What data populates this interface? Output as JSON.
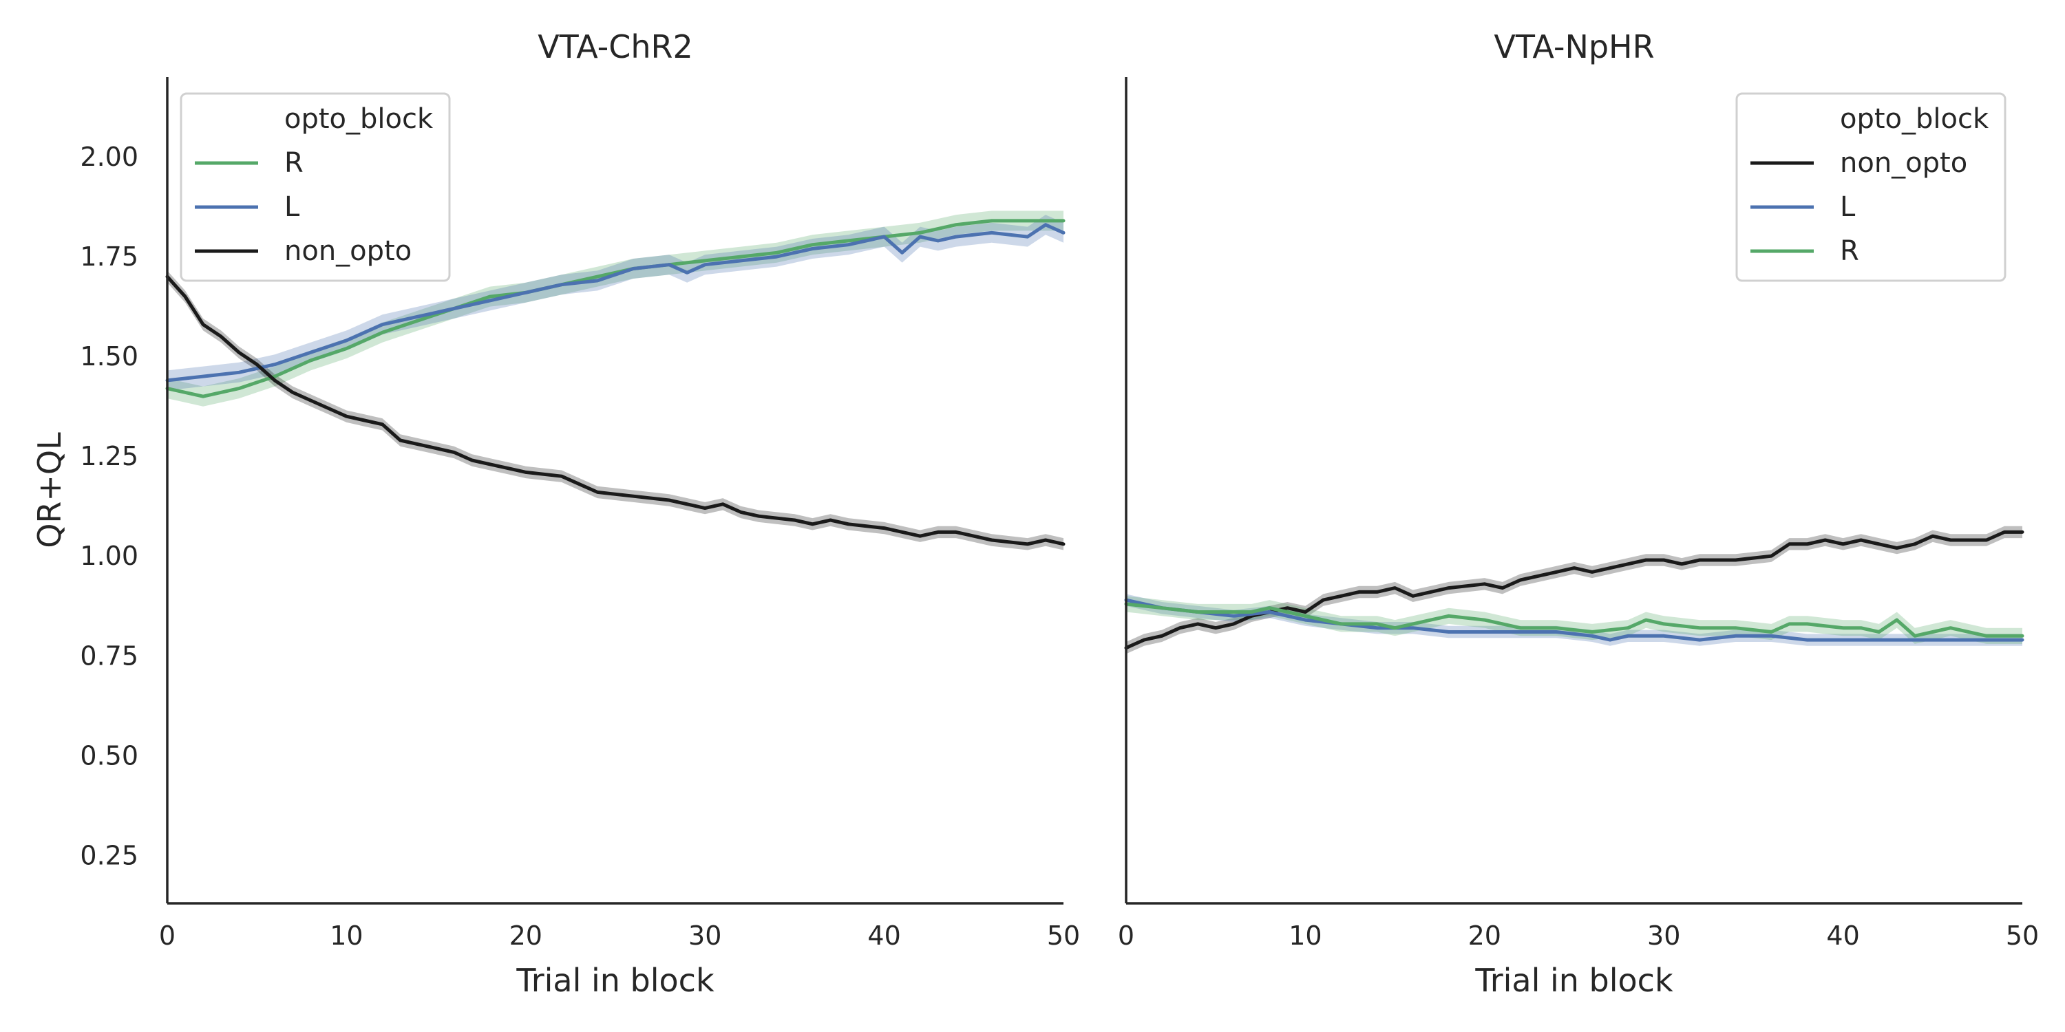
{
  "chart_data": [
    {
      "type": "line",
      "title": "VTA-ChR2",
      "xlabel": "Trial in block",
      "ylabel": "QR+QL",
      "xlim": [
        0,
        50
      ],
      "ylim": [
        0.13,
        2.2
      ],
      "xticks": [
        0,
        10,
        20,
        30,
        40,
        50
      ],
      "yticks": [
        0.25,
        0.5,
        0.75,
        1.0,
        1.25,
        1.5,
        1.75,
        2.0
      ],
      "ytick_labels": [
        "0.25",
        "0.50",
        "0.75",
        "1.00",
        "1.25",
        "1.50",
        "1.75",
        "2.00"
      ],
      "grid": false,
      "legend": {
        "title": "opto_block",
        "position": "top-left"
      },
      "series": [
        {
          "name": "R",
          "color": "#55a868",
          "band": 0.025,
          "points": [
            [
              0,
              1.42
            ],
            [
              2,
              1.4
            ],
            [
              4,
              1.42
            ],
            [
              6,
              1.45
            ],
            [
              8,
              1.49
            ],
            [
              10,
              1.52
            ],
            [
              12,
              1.56
            ],
            [
              14,
              1.59
            ],
            [
              16,
              1.62
            ],
            [
              18,
              1.65
            ],
            [
              20,
              1.66
            ],
            [
              22,
              1.68
            ],
            [
              24,
              1.7
            ],
            [
              26,
              1.72
            ],
            [
              28,
              1.73
            ],
            [
              30,
              1.74
            ],
            [
              32,
              1.75
            ],
            [
              34,
              1.76
            ],
            [
              36,
              1.78
            ],
            [
              38,
              1.79
            ],
            [
              40,
              1.8
            ],
            [
              42,
              1.81
            ],
            [
              44,
              1.83
            ],
            [
              46,
              1.84
            ],
            [
              48,
              1.84
            ],
            [
              50,
              1.84
            ]
          ]
        },
        {
          "name": "L",
          "color": "#4c72b0",
          "band": 0.025,
          "points": [
            [
              0,
              1.44
            ],
            [
              2,
              1.45
            ],
            [
              4,
              1.46
            ],
            [
              6,
              1.48
            ],
            [
              8,
              1.51
            ],
            [
              10,
              1.54
            ],
            [
              12,
              1.58
            ],
            [
              14,
              1.6
            ],
            [
              16,
              1.62
            ],
            [
              18,
              1.64
            ],
            [
              20,
              1.66
            ],
            [
              22,
              1.68
            ],
            [
              24,
              1.69
            ],
            [
              26,
              1.72
            ],
            [
              28,
              1.73
            ],
            [
              29,
              1.71
            ],
            [
              30,
              1.73
            ],
            [
              32,
              1.74
            ],
            [
              34,
              1.75
            ],
            [
              36,
              1.77
            ],
            [
              38,
              1.78
            ],
            [
              40,
              1.8
            ],
            [
              41,
              1.76
            ],
            [
              42,
              1.8
            ],
            [
              43,
              1.79
            ],
            [
              44,
              1.8
            ],
            [
              46,
              1.81
            ],
            [
              48,
              1.8
            ],
            [
              49,
              1.83
            ],
            [
              50,
              1.81
            ]
          ]
        },
        {
          "name": "non_opto",
          "color": "#1a1a1a",
          "band": 0.015,
          "points": [
            [
              0,
              1.7
            ],
            [
              1,
              1.65
            ],
            [
              2,
              1.58
            ],
            [
              3,
              1.55
            ],
            [
              4,
              1.51
            ],
            [
              5,
              1.48
            ],
            [
              6,
              1.44
            ],
            [
              7,
              1.41
            ],
            [
              8,
              1.39
            ],
            [
              9,
              1.37
            ],
            [
              10,
              1.35
            ],
            [
              11,
              1.34
            ],
            [
              12,
              1.33
            ],
            [
              13,
              1.29
            ],
            [
              14,
              1.28
            ],
            [
              15,
              1.27
            ],
            [
              16,
              1.26
            ],
            [
              17,
              1.24
            ],
            [
              18,
              1.23
            ],
            [
              19,
              1.22
            ],
            [
              20,
              1.21
            ],
            [
              22,
              1.2
            ],
            [
              23,
              1.18
            ],
            [
              24,
              1.16
            ],
            [
              26,
              1.15
            ],
            [
              28,
              1.14
            ],
            [
              30,
              1.12
            ],
            [
              31,
              1.13
            ],
            [
              32,
              1.11
            ],
            [
              33,
              1.1
            ],
            [
              35,
              1.09
            ],
            [
              36,
              1.08
            ],
            [
              37,
              1.09
            ],
            [
              38,
              1.08
            ],
            [
              40,
              1.07
            ],
            [
              42,
              1.05
            ],
            [
              43,
              1.06
            ],
            [
              44,
              1.06
            ],
            [
              45,
              1.05
            ],
            [
              46,
              1.04
            ],
            [
              48,
              1.03
            ],
            [
              49,
              1.04
            ],
            [
              50,
              1.03
            ]
          ]
        }
      ]
    },
    {
      "type": "line",
      "title": "VTA-NpHR",
      "xlabel": "Trial in block",
      "ylabel": "",
      "xlim": [
        0,
        50
      ],
      "ylim": [
        0.13,
        2.2
      ],
      "xticks": [
        0,
        10,
        20,
        30,
        40,
        50
      ],
      "grid": false,
      "legend": {
        "title": "opto_block",
        "position": "top-right"
      },
      "series": [
        {
          "name": "non_opto",
          "color": "#1a1a1a",
          "band": 0.015,
          "points": [
            [
              0,
              0.77
            ],
            [
              1,
              0.79
            ],
            [
              2,
              0.8
            ],
            [
              3,
              0.82
            ],
            [
              4,
              0.83
            ],
            [
              5,
              0.82
            ],
            [
              6,
              0.83
            ],
            [
              7,
              0.85
            ],
            [
              8,
              0.86
            ],
            [
              9,
              0.87
            ],
            [
              10,
              0.86
            ],
            [
              11,
              0.89
            ],
            [
              12,
              0.9
            ],
            [
              13,
              0.91
            ],
            [
              14,
              0.91
            ],
            [
              15,
              0.92
            ],
            [
              16,
              0.9
            ],
            [
              17,
              0.91
            ],
            [
              18,
              0.92
            ],
            [
              20,
              0.93
            ],
            [
              21,
              0.92
            ],
            [
              22,
              0.94
            ],
            [
              24,
              0.96
            ],
            [
              25,
              0.97
            ],
            [
              26,
              0.96
            ],
            [
              28,
              0.98
            ],
            [
              29,
              0.99
            ],
            [
              30,
              0.99
            ],
            [
              31,
              0.98
            ],
            [
              32,
              0.99
            ],
            [
              34,
              0.99
            ],
            [
              36,
              1.0
            ],
            [
              37,
              1.03
            ],
            [
              38,
              1.03
            ],
            [
              39,
              1.04
            ],
            [
              40,
              1.03
            ],
            [
              41,
              1.04
            ],
            [
              42,
              1.03
            ],
            [
              43,
              1.02
            ],
            [
              44,
              1.03
            ],
            [
              45,
              1.05
            ],
            [
              46,
              1.04
            ],
            [
              48,
              1.04
            ],
            [
              49,
              1.06
            ],
            [
              50,
              1.06
            ]
          ]
        },
        {
          "name": "L",
          "color": "#4c72b0",
          "band": 0.015,
          "points": [
            [
              0,
              0.89
            ],
            [
              2,
              0.87
            ],
            [
              4,
              0.86
            ],
            [
              6,
              0.85
            ],
            [
              8,
              0.86
            ],
            [
              10,
              0.84
            ],
            [
              12,
              0.83
            ],
            [
              14,
              0.82
            ],
            [
              16,
              0.82
            ],
            [
              18,
              0.81
            ],
            [
              20,
              0.81
            ],
            [
              22,
              0.81
            ],
            [
              24,
              0.81
            ],
            [
              26,
              0.8
            ],
            [
              27,
              0.79
            ],
            [
              28,
              0.8
            ],
            [
              30,
              0.8
            ],
            [
              32,
              0.79
            ],
            [
              34,
              0.8
            ],
            [
              36,
              0.8
            ],
            [
              38,
              0.79
            ],
            [
              40,
              0.79
            ],
            [
              42,
              0.79
            ],
            [
              44,
              0.79
            ],
            [
              46,
              0.79
            ],
            [
              48,
              0.79
            ],
            [
              50,
              0.79
            ]
          ]
        },
        {
          "name": "R",
          "color": "#55a868",
          "band": 0.02,
          "points": [
            [
              0,
              0.88
            ],
            [
              2,
              0.87
            ],
            [
              4,
              0.86
            ],
            [
              6,
              0.86
            ],
            [
              7,
              0.86
            ],
            [
              8,
              0.87
            ],
            [
              9,
              0.86
            ],
            [
              10,
              0.85
            ],
            [
              12,
              0.83
            ],
            [
              14,
              0.83
            ],
            [
              15,
              0.82
            ],
            [
              16,
              0.83
            ],
            [
              17,
              0.84
            ],
            [
              18,
              0.85
            ],
            [
              20,
              0.84
            ],
            [
              22,
              0.82
            ],
            [
              24,
              0.82
            ],
            [
              26,
              0.81
            ],
            [
              28,
              0.82
            ],
            [
              29,
              0.84
            ],
            [
              30,
              0.83
            ],
            [
              32,
              0.82
            ],
            [
              34,
              0.82
            ],
            [
              36,
              0.81
            ],
            [
              37,
              0.83
            ],
            [
              38,
              0.83
            ],
            [
              40,
              0.82
            ],
            [
              41,
              0.82
            ],
            [
              42,
              0.81
            ],
            [
              43,
              0.84
            ],
            [
              44,
              0.8
            ],
            [
              45,
              0.81
            ],
            [
              46,
              0.82
            ],
            [
              48,
              0.8
            ],
            [
              50,
              0.8
            ]
          ]
        }
      ]
    }
  ]
}
